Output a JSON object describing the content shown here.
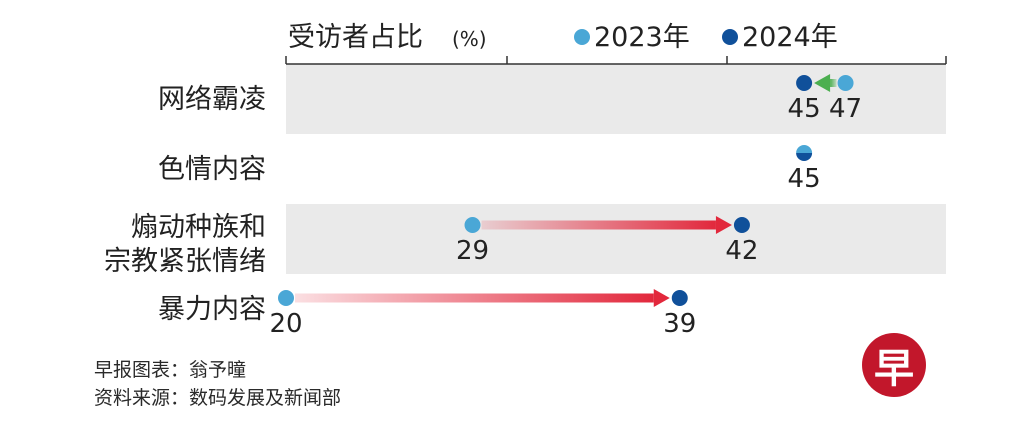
{
  "colors": {
    "y2023": "#4aa7d6",
    "y2024": "#10509a",
    "band": "#eaeaea",
    "increase": "#e2283c",
    "decrease": "#4caf50",
    "logo": "#c2172b"
  },
  "chart_data": {
    "type": "dumbbell",
    "title": "受访者占比",
    "title_unit": "(%)",
    "legend": [
      "2023年",
      "2024年"
    ],
    "legend_position": "top",
    "xlim": [
      0,
      50
    ],
    "grid": false,
    "rows": [
      {
        "label_lines": [
          "网络霸凌"
        ],
        "v2023": 47,
        "v2024": 45,
        "label_2023": "47",
        "label_2024": "45",
        "shaded": true
      },
      {
        "label_lines": [
          "色情内容"
        ],
        "v2023": 45,
        "v2024": 45,
        "label_2023": "",
        "label_2024": "45",
        "shaded": false
      },
      {
        "label_lines": [
          "煽动种族和",
          "宗教紧张情绪"
        ],
        "v2023": 29,
        "v2024": 42,
        "label_2023": "29",
        "label_2024": "42",
        "shaded": true
      },
      {
        "label_lines": [
          "暴力内容"
        ],
        "v2023": 20,
        "v2024": 39,
        "label_2023": "20",
        "label_2024": "39",
        "shaded": false
      }
    ]
  },
  "footer": {
    "credit": "早报图表：翁予曈",
    "source": "资料来源：数码发展及新闻部"
  },
  "logo": {
    "text": "早",
    "icon": "zaobao-logo-icon"
  }
}
